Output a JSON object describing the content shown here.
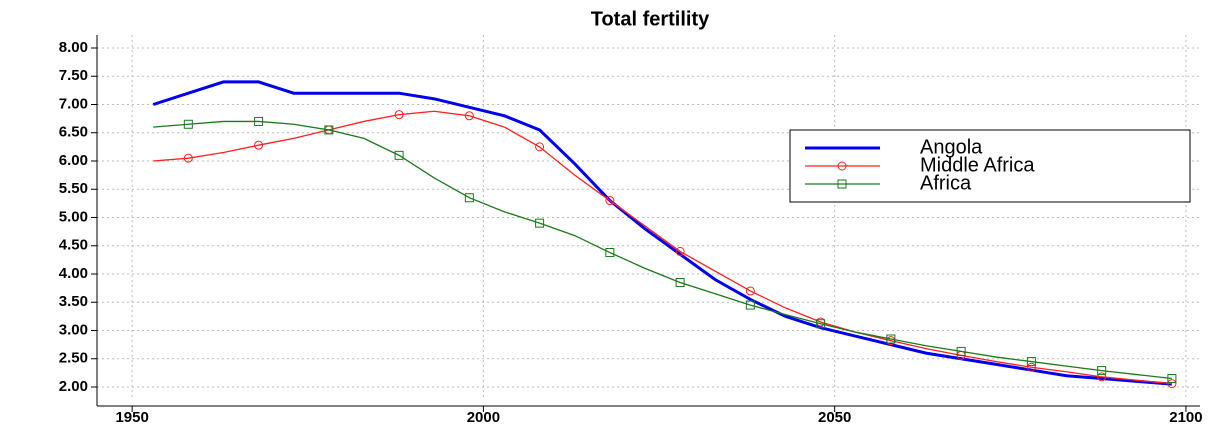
{
  "chart_data": {
    "type": "line",
    "title": "Total fertility",
    "x": [
      1953,
      1958,
      1963,
      1968,
      1973,
      1978,
      1983,
      1988,
      1993,
      1998,
      2003,
      2008,
      2013,
      2018,
      2023,
      2028,
      2033,
      2038,
      2043,
      2048,
      2053,
      2058,
      2063,
      2068,
      2073,
      2078,
      2083,
      2088,
      2093,
      2098
    ],
    "series": [
      {
        "name": "Angola",
        "color": "#0000ee",
        "marker": "none",
        "values": [
          7.0,
          7.2,
          7.4,
          7.4,
          7.2,
          7.2,
          7.2,
          7.2,
          7.1,
          6.95,
          6.8,
          6.55,
          5.95,
          5.3,
          4.8,
          4.35,
          3.9,
          3.55,
          3.25,
          3.05,
          2.9,
          2.75,
          2.6,
          2.5,
          2.4,
          2.3,
          2.2,
          2.15,
          2.1,
          2.05
        ]
      },
      {
        "name": "Middle Africa",
        "color": "#ff2020",
        "marker": "circle",
        "values": [
          6.0,
          6.05,
          6.15,
          6.28,
          6.4,
          6.55,
          6.7,
          6.82,
          6.88,
          6.8,
          6.6,
          6.25,
          5.75,
          5.3,
          4.85,
          4.4,
          4.05,
          3.7,
          3.4,
          3.15,
          2.97,
          2.82,
          2.68,
          2.56,
          2.45,
          2.35,
          2.27,
          2.18,
          2.12,
          2.06
        ]
      },
      {
        "name": "Africa",
        "color": "#1a7a1a",
        "marker": "square",
        "values": [
          6.6,
          6.65,
          6.7,
          6.7,
          6.65,
          6.55,
          6.4,
          6.1,
          5.7,
          5.35,
          5.1,
          4.9,
          4.68,
          4.38,
          4.1,
          3.85,
          3.65,
          3.45,
          3.28,
          3.12,
          2.97,
          2.85,
          2.73,
          2.63,
          2.53,
          2.45,
          2.37,
          2.29,
          2.22,
          2.15
        ]
      }
    ],
    "xlim": [
      1945,
      2102
    ],
    "xticks": [
      1950,
      2000,
      2050,
      2100
    ],
    "ylim": [
      1.77,
      8.23
    ],
    "yticks": [
      {
        "value": 2,
        "label": "2.00"
      },
      {
        "value": 2.5,
        "label": "2.50"
      },
      {
        "value": 3,
        "label": "3.00"
      },
      {
        "value": 3.5,
        "label": "3.50"
      },
      {
        "value": 4,
        "label": "4.00"
      },
      {
        "value": 4.5,
        "label": "4.50"
      },
      {
        "value": 5,
        "label": "5.00"
      },
      {
        "value": 5.5,
        "label": "5.50"
      },
      {
        "value": 6,
        "label": "6.00"
      },
      {
        "value": 6.5,
        "label": "6.50"
      },
      {
        "value": 7,
        "label": "7.00"
      },
      {
        "value": 7.5,
        "label": "7.50"
      },
      {
        "value": 8,
        "label": "8.00"
      }
    ],
    "grid": true,
    "legend": "right"
  }
}
